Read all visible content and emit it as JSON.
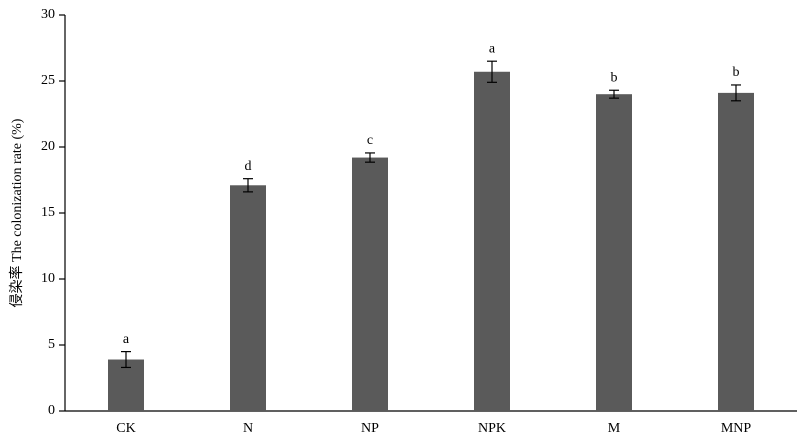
{
  "chart_data": {
    "type": "bar",
    "ylabel": "侵染率 The colonization rate (%)",
    "categories": [
      "CK",
      "N",
      "NP",
      "NPK",
      "M",
      "MNP"
    ],
    "values": [
      3.9,
      17.1,
      19.2,
      25.7,
      24.0,
      24.1
    ],
    "errors": [
      0.6,
      0.5,
      0.35,
      0.8,
      0.3,
      0.6
    ],
    "annotations": [
      "a",
      "d",
      "c",
      "a",
      "b",
      "b"
    ],
    "color": "#5a5a5a",
    "ylim": [
      0,
      30
    ],
    "yticks": [
      0,
      5,
      10,
      15,
      20,
      25,
      30
    ],
    "grid": false
  }
}
